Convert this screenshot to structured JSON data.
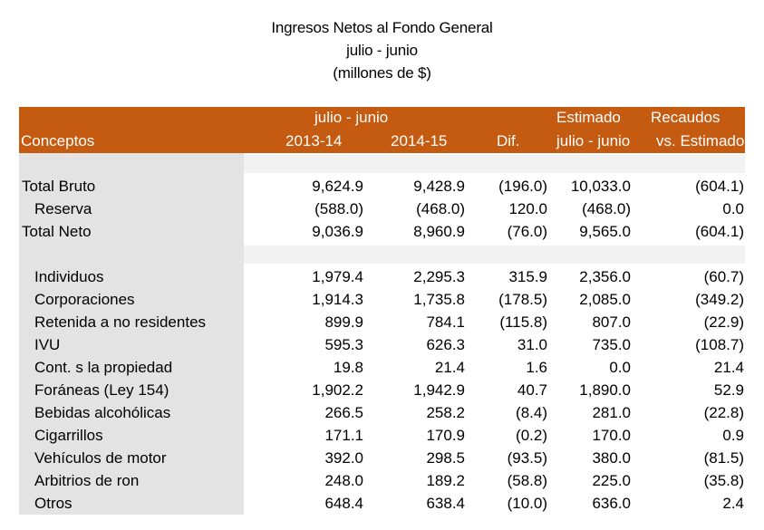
{
  "title": {
    "line1": "Ingresos Netos al Fondo General",
    "line2": "julio - junio",
    "line3": "(millones de $)"
  },
  "header": {
    "group_period": "julio - junio",
    "estimado": "Estimado",
    "recaudos": "Recaudos",
    "conceptos": "Conceptos",
    "col_2013": "2013-14",
    "col_2014": "2014-15",
    "dif": "Dif.",
    "estimado_period": "julio - junio",
    "vs_estimado": "vs. Estimado"
  },
  "colors": {
    "header_bg": "#c55a11",
    "label_column_bg": "#e3e3e3",
    "spacer_bg": "#f2f2f2"
  },
  "rows": [
    {
      "label": "Total Bruto",
      "v2013": "9,624.9",
      "v2014": "9,428.9",
      "dif": "(196.0)",
      "estimado": "10,033.0",
      "vs_est": "(604.1)"
    },
    {
      "label": "Reserva",
      "v2013": "(588.0)",
      "v2014": "(468.0)",
      "dif": "120.0",
      "estimado": "(468.0)",
      "vs_est": "0.0"
    },
    {
      "label": "Total Neto",
      "v2013": "9,036.9",
      "v2014": "8,960.9",
      "dif": "(76.0)",
      "estimado": "9,565.0",
      "vs_est": "(604.1)"
    },
    {
      "label": "Individuos",
      "v2013": "1,979.4",
      "v2014": "2,295.3",
      "dif": "315.9",
      "estimado": "2,356.0",
      "vs_est": "(60.7)"
    },
    {
      "label": "Corporaciones",
      "v2013": "1,914.3",
      "v2014": "1,735.8",
      "dif": "(178.5)",
      "estimado": "2,085.0",
      "vs_est": "(349.2)"
    },
    {
      "label": "Retenida a no residentes",
      "v2013": "899.9",
      "v2014": "784.1",
      "dif": "(115.8)",
      "estimado": "807.0",
      "vs_est": "(22.9)"
    },
    {
      "label": "IVU",
      "v2013": "595.3",
      "v2014": "626.3",
      "dif": "31.0",
      "estimado": "735.0",
      "vs_est": "(108.7)"
    },
    {
      "label": "Cont. s la propiedad",
      "v2013": "19.8",
      "v2014": "21.4",
      "dif": "1.6",
      "estimado": "0.0",
      "vs_est": "21.4"
    },
    {
      "label": "Foráneas (Ley 154)",
      "v2013": "1,902.2",
      "v2014": "1,942.9",
      "dif": "40.7",
      "estimado": "1,890.0",
      "vs_est": "52.9"
    },
    {
      "label": "Bebidas alcohólicas",
      "v2013": "266.5",
      "v2014": "258.2",
      "dif": "(8.4)",
      "estimado": "281.0",
      "vs_est": "(22.8)"
    },
    {
      "label": "Cigarrillos",
      "v2013": "171.1",
      "v2014": "170.9",
      "dif": "(0.2)",
      "estimado": "170.0",
      "vs_est": "0.9"
    },
    {
      "label": "Vehículos de motor",
      "v2013": "392.0",
      "v2014": "298.5",
      "dif": "(93.5)",
      "estimado": "380.0",
      "vs_est": "(81.5)"
    },
    {
      "label": "Arbitrios de ron",
      "v2013": "248.0",
      "v2014": "189.2",
      "dif": "(58.8)",
      "estimado": "225.0",
      "vs_est": "(35.8)"
    },
    {
      "label": "Otros",
      "v2013": "648.4",
      "v2014": "638.4",
      "dif": "(10.0)",
      "estimado": "636.0",
      "vs_est": "2.4"
    }
  ]
}
